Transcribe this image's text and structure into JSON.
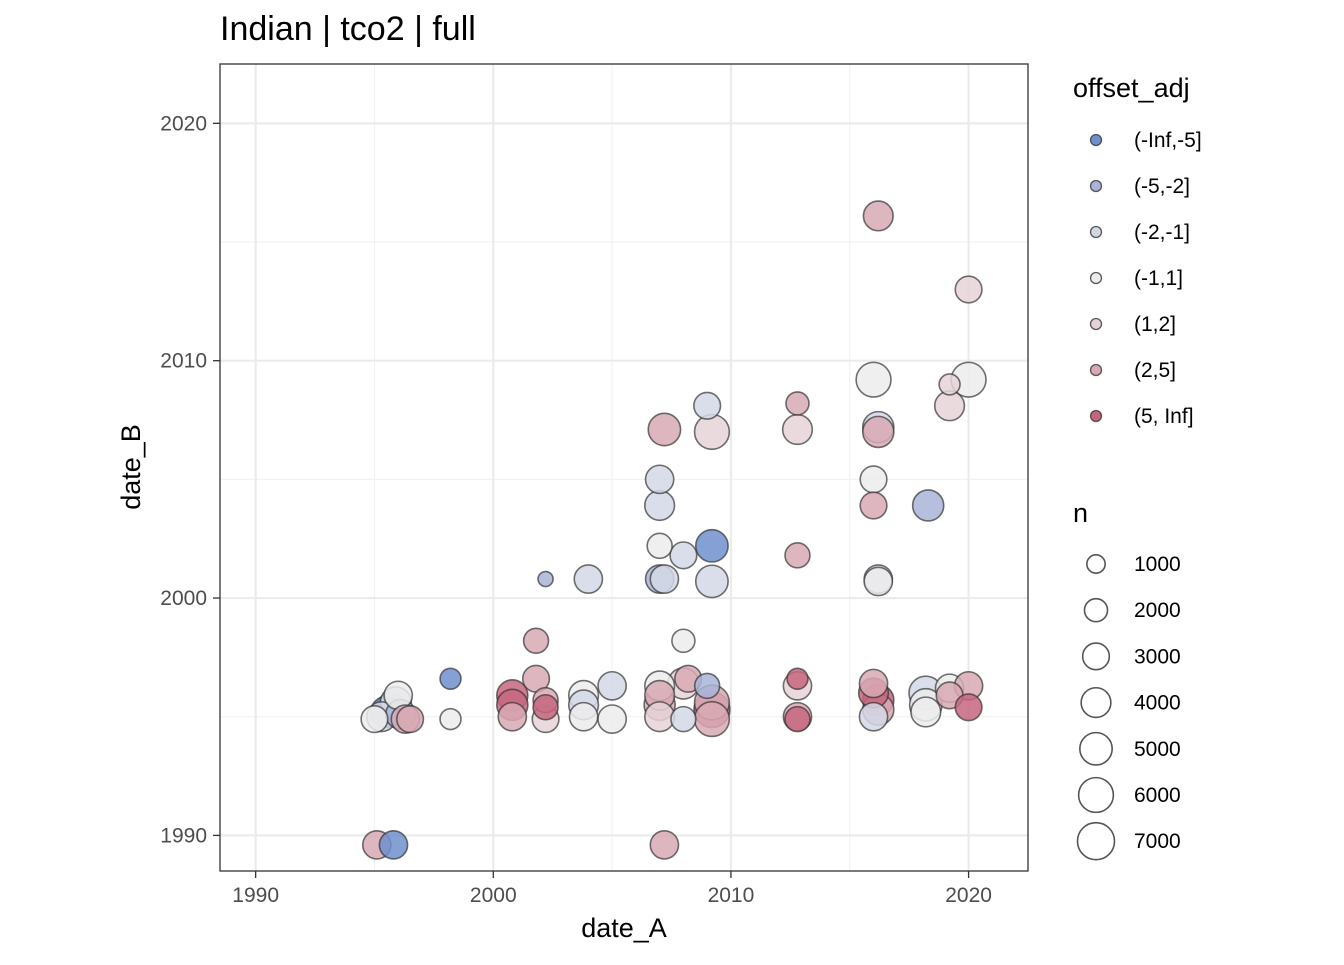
{
  "chart_data": {
    "type": "scatter",
    "title": "Indian | tco2 | full",
    "xlabel": "date_A",
    "ylabel": "date_B",
    "xlim": [
      1988.5,
      2022.5
    ],
    "ylim": [
      1988.5,
      2022.5
    ],
    "x_ticks": [
      1990,
      2000,
      2010,
      2020
    ],
    "y_ticks": [
      1990,
      2000,
      2010,
      2020
    ],
    "grid": true,
    "legend_position": "right",
    "color_legend": {
      "title": "offset_adj",
      "entries": [
        {
          "label": "(-Inf,-5]",
          "color": "#6f8fcc"
        },
        {
          "label": "(-5,-2]",
          "color": "#a9b4d8"
        },
        {
          "label": "(-2,-1]",
          "color": "#d4d8e6"
        },
        {
          "label": "(-1,1]",
          "color": "#ececec"
        },
        {
          "label": "(1,2]",
          "color": "#e6d3d8"
        },
        {
          "label": "(2,5]",
          "color": "#d8a9b4"
        },
        {
          "label": "(5, Inf]",
          "color": "#c5667f"
        }
      ]
    },
    "size_legend": {
      "title": "n",
      "entries": [
        1000,
        2000,
        3000,
        4000,
        5000,
        6000,
        7000
      ]
    },
    "points": [
      {
        "x": 1995.1,
        "y": 1989.6,
        "n": 3500,
        "cat": "(2,5]"
      },
      {
        "x": 1995.8,
        "y": 1989.6,
        "n": 3500,
        "cat": "(-Inf,-5]"
      },
      {
        "x": 2007.2,
        "y": 1989.6,
        "n": 3500,
        "cat": "(2,5]"
      },
      {
        "x": 1995.0,
        "y": 1994.9,
        "n": 3000,
        "cat": "(-1,1]"
      },
      {
        "x": 1995.3,
        "y": 1995.0,
        "n": 4000,
        "cat": "(-2,-1]"
      },
      {
        "x": 1995.5,
        "y": 1995.2,
        "n": 4500,
        "cat": "(-Inf,-5]"
      },
      {
        "x": 1995.7,
        "y": 1995.3,
        "n": 5000,
        "cat": "(-5,-2]"
      },
      {
        "x": 1995.9,
        "y": 1995.6,
        "n": 4500,
        "cat": "(-2,-1]"
      },
      {
        "x": 1996.0,
        "y": 1995.9,
        "n": 3500,
        "cat": "(-1,1]"
      },
      {
        "x": 1996.1,
        "y": 1995.1,
        "n": 4000,
        "cat": "(-5,-2]"
      },
      {
        "x": 1996.3,
        "y": 1994.9,
        "n": 3500,
        "cat": "(2,5]"
      },
      {
        "x": 1996.5,
        "y": 1994.9,
        "n": 3000,
        "cat": "(2,5]"
      },
      {
        "x": 1998.2,
        "y": 1996.6,
        "n": 1500,
        "cat": "(-Inf,-5]"
      },
      {
        "x": 1998.2,
        "y": 1994.9,
        "n": 1500,
        "cat": "(-1,1]"
      },
      {
        "x": 2000.8,
        "y": 1995.9,
        "n": 4500,
        "cat": "(5, Inf]"
      },
      {
        "x": 2000.8,
        "y": 1995.5,
        "n": 4500,
        "cat": "(5, Inf]"
      },
      {
        "x": 2000.8,
        "y": 1995.0,
        "n": 3500,
        "cat": "(2,5]"
      },
      {
        "x": 2001.8,
        "y": 1998.2,
        "n": 2500,
        "cat": "(2,5]"
      },
      {
        "x": 2001.8,
        "y": 1996.6,
        "n": 3000,
        "cat": "(2,5]"
      },
      {
        "x": 2002.2,
        "y": 2000.8,
        "n": 500,
        "cat": "(-5,-2]"
      },
      {
        "x": 2002.2,
        "y": 1995.7,
        "n": 2500,
        "cat": "(2,5]"
      },
      {
        "x": 2002.2,
        "y": 1995.4,
        "n": 2500,
        "cat": "(5, Inf]"
      },
      {
        "x": 2002.2,
        "y": 1994.9,
        "n": 3000,
        "cat": "(1,2]"
      },
      {
        "x": 2003.8,
        "y": 1995.9,
        "n": 4000,
        "cat": "(-1,1]"
      },
      {
        "x": 2003.8,
        "y": 1995.5,
        "n": 4000,
        "cat": "(-2,-1]"
      },
      {
        "x": 2003.8,
        "y": 1995.0,
        "n": 3500,
        "cat": "(-1,1]"
      },
      {
        "x": 2004.0,
        "y": 2000.8,
        "n": 3500,
        "cat": "(-2,-1]"
      },
      {
        "x": 2005.0,
        "y": 1996.3,
        "n": 3500,
        "cat": "(-2,-1]"
      },
      {
        "x": 2005.0,
        "y": 1994.9,
        "n": 3500,
        "cat": "(-1,1]"
      },
      {
        "x": 2007.0,
        "y": 2005.0,
        "n": 3500,
        "cat": "(-2,-1]"
      },
      {
        "x": 2007.0,
        "y": 2003.9,
        "n": 4000,
        "cat": "(-2,-1]"
      },
      {
        "x": 2007.0,
        "y": 2002.2,
        "n": 2500,
        "cat": "(-1,1]"
      },
      {
        "x": 2007.0,
        "y": 2000.8,
        "n": 3500,
        "cat": "(-5,-2]"
      },
      {
        "x": 2007.2,
        "y": 2000.8,
        "n": 3500,
        "cat": "(-2,-1]"
      },
      {
        "x": 2007.2,
        "y": 2007.1,
        "n": 5000,
        "cat": "(2,5]"
      },
      {
        "x": 2007.0,
        "y": 1996.3,
        "n": 4000,
        "cat": "(-1,1]"
      },
      {
        "x": 2007.0,
        "y": 1995.9,
        "n": 4000,
        "cat": "(2,5]"
      },
      {
        "x": 2007.0,
        "y": 1995.5,
        "n": 4500,
        "cat": "(2,5]"
      },
      {
        "x": 2007.0,
        "y": 1995.0,
        "n": 4000,
        "cat": "(1,2]"
      },
      {
        "x": 2008.0,
        "y": 2001.8,
        "n": 3000,
        "cat": "(-2,-1]"
      },
      {
        "x": 2008.0,
        "y": 1998.2,
        "n": 2000,
        "cat": "(-1,1]"
      },
      {
        "x": 2008.2,
        "y": 1996.6,
        "n": 3000,
        "cat": "(2,5]"
      },
      {
        "x": 2008.0,
        "y": 1996.4,
        "n": 4500,
        "cat": "(1,2]"
      },
      {
        "x": 2008.0,
        "y": 1994.9,
        "n": 2500,
        "cat": "(-2,-1]"
      },
      {
        "x": 2009.0,
        "y": 2008.1,
        "n": 3000,
        "cat": "(-2,-1]"
      },
      {
        "x": 2009.2,
        "y": 2007.0,
        "n": 6000,
        "cat": "(1,2]"
      },
      {
        "x": 2009.2,
        "y": 2002.2,
        "n": 5000,
        "cat": "(-Inf,-5]"
      },
      {
        "x": 2009.2,
        "y": 2000.7,
        "n": 5000,
        "cat": "(-2,-1]"
      },
      {
        "x": 2009.0,
        "y": 1996.3,
        "n": 2500,
        "cat": "(-5,-2]"
      },
      {
        "x": 2009.2,
        "y": 1995.6,
        "n": 6000,
        "cat": "(2,5]"
      },
      {
        "x": 2009.2,
        "y": 1995.3,
        "n": 6500,
        "cat": "(5, Inf]"
      },
      {
        "x": 2009.2,
        "y": 1994.9,
        "n": 6000,
        "cat": "(2,5]"
      },
      {
        "x": 2012.8,
        "y": 2008.2,
        "n": 2000,
        "cat": "(2,5]"
      },
      {
        "x": 2012.8,
        "y": 2007.1,
        "n": 4000,
        "cat": "(1,2]"
      },
      {
        "x": 2012.8,
        "y": 2001.8,
        "n": 2500,
        "cat": "(2,5]"
      },
      {
        "x": 2012.8,
        "y": 1996.6,
        "n": 1500,
        "cat": "(5, Inf]"
      },
      {
        "x": 2012.8,
        "y": 1996.3,
        "n": 3500,
        "cat": "(1,2]"
      },
      {
        "x": 2012.8,
        "y": 1995.0,
        "n": 3500,
        "cat": "(2,5]"
      },
      {
        "x": 2012.8,
        "y": 1994.9,
        "n": 2500,
        "cat": "(5, Inf]"
      },
      {
        "x": 2016.2,
        "y": 2016.1,
        "n": 4000,
        "cat": "(2,5]"
      },
      {
        "x": 2016.0,
        "y": 2009.2,
        "n": 6000,
        "cat": "(-1,1]"
      },
      {
        "x": 2016.2,
        "y": 2007.2,
        "n": 4500,
        "cat": "(-2,-1]"
      },
      {
        "x": 2016.2,
        "y": 2007.0,
        "n": 4500,
        "cat": "(2,5]"
      },
      {
        "x": 2016.0,
        "y": 2005.0,
        "n": 3000,
        "cat": "(-1,1]"
      },
      {
        "x": 2016.0,
        "y": 2003.9,
        "n": 3000,
        "cat": "(2,5]"
      },
      {
        "x": 2016.2,
        "y": 2000.8,
        "n": 3500,
        "cat": "(-2,-1]"
      },
      {
        "x": 2016.2,
        "y": 2000.7,
        "n": 3500,
        "cat": "(-1,1]"
      },
      {
        "x": 2016.0,
        "y": 1996.4,
        "n": 3500,
        "cat": "(2,5]"
      },
      {
        "x": 2016.0,
        "y": 1996.0,
        "n": 4000,
        "cat": "(5, Inf]"
      },
      {
        "x": 2016.2,
        "y": 1995.7,
        "n": 4500,
        "cat": "(5, Inf]"
      },
      {
        "x": 2016.2,
        "y": 1995.3,
        "n": 4500,
        "cat": "(2,5]"
      },
      {
        "x": 2016.0,
        "y": 1995.0,
        "n": 3500,
        "cat": "(-2,-1]"
      },
      {
        "x": 2018.3,
        "y": 2003.9,
        "n": 4500,
        "cat": "(-5,-2]"
      },
      {
        "x": 2018.2,
        "y": 1996.0,
        "n": 5500,
        "cat": "(-2,-1]"
      },
      {
        "x": 2018.2,
        "y": 1995.5,
        "n": 5000,
        "cat": "(-1,1]"
      },
      {
        "x": 2018.2,
        "y": 1995.2,
        "n": 4000,
        "cat": "(-1,1]"
      },
      {
        "x": 2019.2,
        "y": 2009.0,
        "n": 1500,
        "cat": "(1,2]"
      },
      {
        "x": 2019.2,
        "y": 2008.1,
        "n": 4000,
        "cat": "(1,2]"
      },
      {
        "x": 2019.2,
        "y": 1996.2,
        "n": 3500,
        "cat": "(-1,1]"
      },
      {
        "x": 2019.2,
        "y": 1995.9,
        "n": 3000,
        "cat": "(2,5]"
      },
      {
        "x": 2020.0,
        "y": 2013.0,
        "n": 3000,
        "cat": "(1,2]"
      },
      {
        "x": 2020.0,
        "y": 2009.2,
        "n": 6000,
        "cat": "(-1,1]"
      },
      {
        "x": 2020.0,
        "y": 1996.3,
        "n": 3500,
        "cat": "(2,5]"
      },
      {
        "x": 2020.0,
        "y": 1995.4,
        "n": 3000,
        "cat": "(5, Inf]"
      }
    ]
  }
}
